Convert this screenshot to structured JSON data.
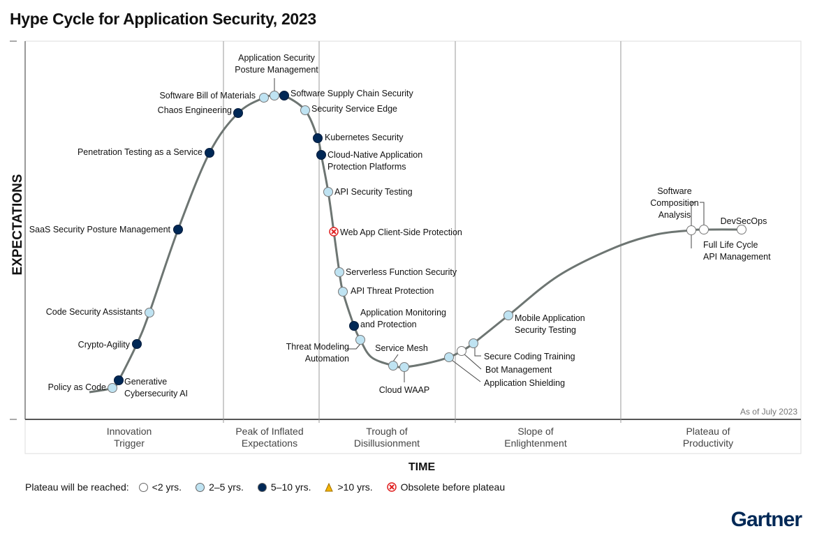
{
  "title": "Hype Cycle for Application Security, 2023",
  "y_axis_label": "EXPECTATIONS",
  "x_axis_label": "TIME",
  "as_of": "As of July 2023",
  "phases": [
    {
      "lines": [
        "Innovation",
        "Trigger"
      ]
    },
    {
      "lines": [
        "Peak of Inflated",
        "Expectations"
      ]
    },
    {
      "lines": [
        "Trough of",
        "Disillusionment"
      ]
    },
    {
      "lines": [
        "Slope of",
        "Enlightenment"
      ]
    },
    {
      "lines": [
        "Plateau of",
        "Productivity"
      ]
    }
  ],
  "legend": {
    "title": "Plateau will be reached:",
    "items": [
      {
        "key": "lt2",
        "label": "<2 yrs.",
        "color": "#ffffff"
      },
      {
        "key": "2to5",
        "label": "2–5 yrs.",
        "color": "#bfe3f2"
      },
      {
        "key": "5to10",
        "label": "5–10 yrs.",
        "color": "#002856"
      },
      {
        "key": "gt10",
        "label": ">10 yrs.",
        "color": "#f5b400"
      },
      {
        "key": "obsolete",
        "label": "Obsolete before plateau",
        "color": "#e02020"
      }
    ]
  },
  "technologies": [
    {
      "lines": [
        "Policy as Code"
      ],
      "status": "2to5"
    },
    {
      "lines": [
        "Generative",
        "Cybersecurity AI"
      ],
      "status": "5to10"
    },
    {
      "lines": [
        "Crypto-Agility"
      ],
      "status": "5to10"
    },
    {
      "lines": [
        "Code Security Assistants"
      ],
      "status": "2to5"
    },
    {
      "lines": [
        "SaaS Security Posture Management"
      ],
      "status": "5to10"
    },
    {
      "lines": [
        "Penetration Testing as a Service"
      ],
      "status": "5to10"
    },
    {
      "lines": [
        "Chaos Engineering"
      ],
      "status": "5to10"
    },
    {
      "lines": [
        "Software Bill of Materials"
      ],
      "status": "2to5"
    },
    {
      "lines": [
        "Application Security",
        "Posture Management"
      ],
      "status": "2to5"
    },
    {
      "lines": [
        "Software Supply Chain Security"
      ],
      "status": "5to10"
    },
    {
      "lines": [
        "Security Service Edge"
      ],
      "status": "2to5"
    },
    {
      "lines": [
        "Kubernetes Security"
      ],
      "status": "5to10"
    },
    {
      "lines": [
        "Cloud-Native Application",
        "Protection Platforms"
      ],
      "status": "5to10"
    },
    {
      "lines": [
        "API Security Testing"
      ],
      "status": "2to5"
    },
    {
      "lines": [
        "Web App Client-Side Protection"
      ],
      "status": "obsolete"
    },
    {
      "lines": [
        "Serverless Function Security"
      ],
      "status": "2to5"
    },
    {
      "lines": [
        "API Threat Protection"
      ],
      "status": "2to5"
    },
    {
      "lines": [
        "Application Monitoring",
        "and Protection"
      ],
      "status": "5to10"
    },
    {
      "lines": [
        "Threat Modeling",
        "Automation"
      ],
      "status": "2to5"
    },
    {
      "lines": [
        "Service Mesh"
      ],
      "status": "2to5"
    },
    {
      "lines": [
        "Cloud WAAP"
      ],
      "status": "2to5"
    },
    {
      "lines": [
        "Application Shielding"
      ],
      "status": "2to5"
    },
    {
      "lines": [
        "Bot Management"
      ],
      "status": "lt2"
    },
    {
      "lines": [
        "Secure Coding Training"
      ],
      "status": "2to5"
    },
    {
      "lines": [
        "Mobile Application",
        "Security Testing"
      ],
      "status": "2to5"
    },
    {
      "lines": [
        "Software",
        "Composition",
        "Analysis"
      ],
      "status": "lt2"
    },
    {
      "lines": [
        "Full Life Cycle",
        "API Management"
      ],
      "status": "lt2"
    },
    {
      "lines": [
        "DevSecOps"
      ],
      "status": "lt2"
    }
  ],
  "brand": "Gartner"
}
